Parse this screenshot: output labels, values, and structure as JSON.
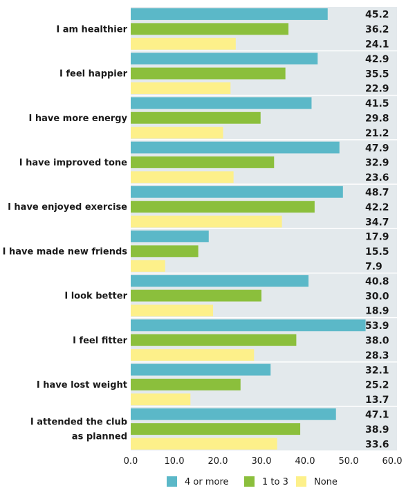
{
  "chart_data": {
    "type": "bar",
    "orientation": "horizontal",
    "categories": [
      "I am healthier",
      "I feel happier",
      "I have more energy",
      "I have improved tone",
      "I have enjoyed exercise",
      "I have made new friends",
      "I look better",
      "I feel fitter",
      "I have lost weight",
      "I attended the club as planned"
    ],
    "category_lines": [
      [
        "I am healthier"
      ],
      [
        "I feel happier"
      ],
      [
        "I have more energy"
      ],
      [
        "I have improved tone"
      ],
      [
        "I have enjoyed exercise"
      ],
      [
        "I have made new friends"
      ],
      [
        "I look better"
      ],
      [
        "I feel fitter"
      ],
      [
        "I have lost weight"
      ],
      [
        "I attended the club",
        "as planned"
      ]
    ],
    "series": [
      {
        "name": "4 or more",
        "color": "#5bb8c8",
        "values": [
          45.2,
          42.9,
          41.5,
          47.9,
          48.7,
          17.9,
          40.8,
          53.9,
          32.1,
          47.1
        ]
      },
      {
        "name": "1 to 3",
        "color": "#8bbf3c",
        "values": [
          36.2,
          35.5,
          29.8,
          32.9,
          42.2,
          15.5,
          30.0,
          38.0,
          25.2,
          38.9
        ]
      },
      {
        "name": "None",
        "color": "#fdf08a",
        "values": [
          24.1,
          22.9,
          21.2,
          23.6,
          34.7,
          7.9,
          18.9,
          28.3,
          13.7,
          33.6
        ]
      }
    ],
    "value_labels": [
      [
        "45.2",
        "42.9",
        "41.5",
        "47.9",
        "48.7",
        "17.9",
        "40.8",
        "53.9",
        "32.1",
        "47.1"
      ],
      [
        "36.2",
        "35.5",
        "29.8",
        "32.9",
        "42.2",
        "15.5",
        "30.0",
        "38.0",
        "25.2",
        "38.9"
      ],
      [
        "24.1",
        "22.9",
        "21.2",
        "23.6",
        "34.7",
        "7.9",
        "18.9",
        "28.3",
        "13.7",
        "33.6"
      ]
    ],
    "xlim": [
      0,
      60
    ],
    "xticks": [
      "0.0",
      "10.0",
      "20.0",
      "30.0",
      "40.0",
      "50.0",
      "60.0"
    ],
    "panel_background": "#e3e9ec",
    "legend_position": "bottom",
    "grid": false,
    "title": "",
    "xlabel": "",
    "ylabel": ""
  }
}
